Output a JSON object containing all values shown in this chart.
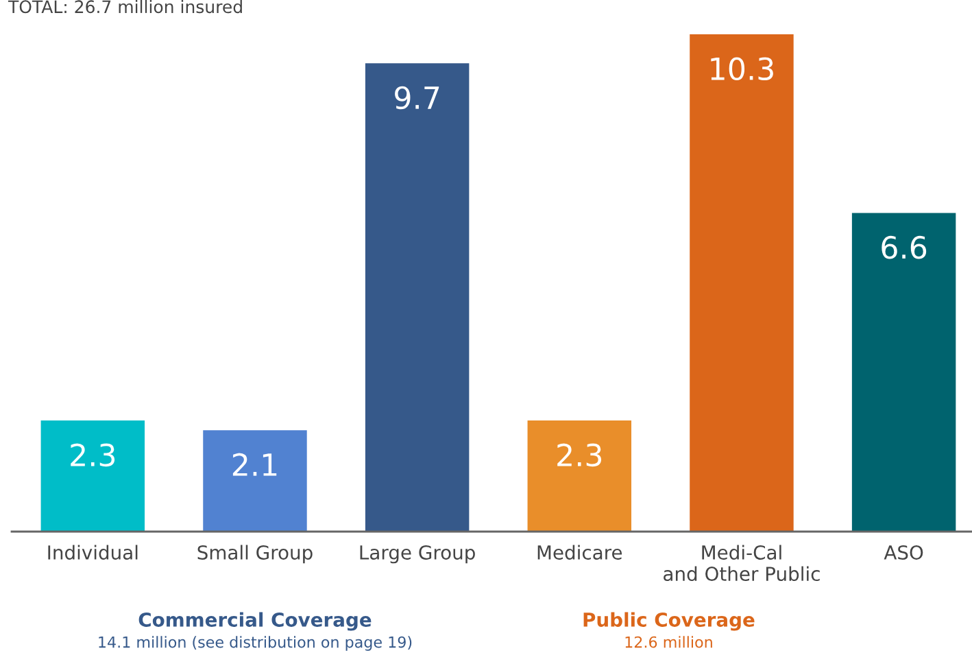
{
  "chart_data": {
    "type": "bar",
    "title": "TOTAL: 26.7 million insured",
    "categories": [
      "Individual",
      "Small Group",
      "Large Group",
      "Medicare",
      "Medi-Cal\nand Other Public",
      "ASO"
    ],
    "values": [
      2.3,
      2.1,
      9.7,
      2.3,
      10.3,
      6.6
    ],
    "colors": [
      "#00bdc8",
      "#5182d1",
      "#36598a",
      "#e98e2a",
      "#db661a",
      "#00636e"
    ],
    "data_labels": true,
    "grid": false,
    "legend": false,
    "annotations": [
      "Commercial Coverage",
      "14.1 million (see distribution on page 19)",
      "Public Coverage",
      "12.6 million"
    ]
  }
}
